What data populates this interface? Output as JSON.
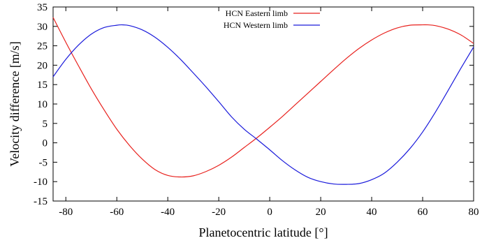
{
  "chart_data": {
    "type": "line",
    "xlabel": "Planetocentric latitude [°]",
    "ylabel": "Velocity difference [m/s]",
    "xlim": [
      -85,
      80
    ],
    "ylim": [
      -15,
      35
    ],
    "x_ticks": [
      -80,
      -60,
      -40,
      -20,
      0,
      20,
      40,
      60,
      80
    ],
    "y_ticks": [
      -15,
      -10,
      -5,
      0,
      5,
      10,
      15,
      20,
      25,
      30,
      35
    ],
    "x_tick_labels": [
      "-80",
      "-60",
      "-40",
      "-20",
      "0",
      "20",
      "40",
      "60",
      "80"
    ],
    "y_tick_labels": [
      "-15",
      "-10",
      "-5",
      "0",
      "5",
      "10",
      "15",
      "20",
      "25",
      "30",
      "35"
    ],
    "grid": false,
    "legend_position": "top-center",
    "series": [
      {
        "name": "HCN Eastern limb",
        "color": "#e8211d",
        "x": [
          -85,
          -80,
          -75,
          -70,
          -65,
          -60,
          -55,
          -50,
          -45,
          -40,
          -35,
          -30,
          -25,
          -20,
          -15,
          -10,
          -5,
          0,
          5,
          10,
          15,
          20,
          25,
          30,
          35,
          40,
          45,
          50,
          55,
          60,
          62,
          65,
          70,
          75,
          80
        ],
        "y": [
          32.3,
          25.9,
          19.8,
          13.9,
          8.5,
          3.5,
          -0.7,
          -4.2,
          -6.9,
          -8.4,
          -8.8,
          -8.5,
          -7.4,
          -5.8,
          -3.7,
          -1.2,
          1.3,
          4.0,
          6.8,
          9.8,
          12.8,
          15.8,
          18.8,
          21.7,
          24.3,
          26.5,
          28.3,
          29.6,
          30.3,
          30.4,
          30.4,
          30.2,
          29.3,
          27.8,
          25.6
        ]
      },
      {
        "name": "HCN Western limb",
        "color": "#1a1adb",
        "x": [
          -85,
          -80,
          -75,
          -70,
          -65,
          -60,
          -58,
          -55,
          -50,
          -45,
          -40,
          -35,
          -30,
          -25,
          -20,
          -15,
          -10,
          -5,
          0,
          5,
          10,
          15,
          20,
          25,
          30,
          35,
          40,
          45,
          50,
          55,
          60,
          65,
          70,
          75,
          80
        ],
        "y": [
          17.0,
          21.5,
          25.2,
          28.0,
          29.7,
          30.3,
          30.4,
          30.2,
          29.1,
          27.2,
          24.6,
          21.5,
          18.0,
          14.4,
          10.6,
          6.7,
          3.5,
          0.9,
          -1.8,
          -4.6,
          -7.0,
          -8.9,
          -10.0,
          -10.6,
          -10.7,
          -10.5,
          -9.5,
          -7.8,
          -5.0,
          -1.5,
          2.8,
          7.9,
          13.5,
          19.2,
          24.7
        ]
      }
    ]
  }
}
